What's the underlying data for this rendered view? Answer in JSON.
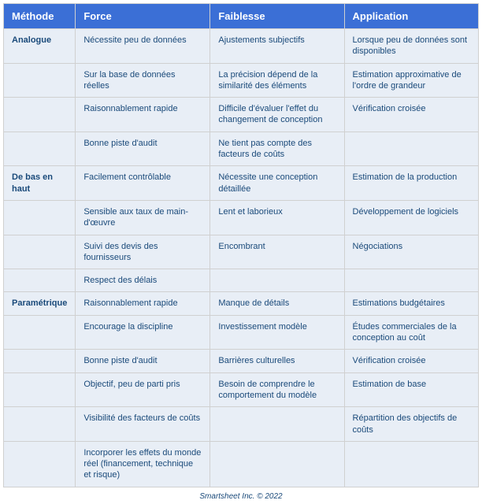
{
  "columns": [
    "Méthode",
    "Force",
    "Faiblesse",
    "Application"
  ],
  "rows": [
    [
      "Analogue",
      "Nécessite peu de données",
      "Ajustements subjectifs",
      "Lorsque peu de données sont disponibles"
    ],
    [
      "",
      "Sur la base de données réelles",
      "La précision dépend de la similarité des éléments",
      "Estimation approximative de l'ordre de grandeur"
    ],
    [
      "",
      "Raisonnablement rapide",
      "Difficile d'évaluer l'effet du changement de conception",
      "Vérification croisée"
    ],
    [
      "",
      "Bonne piste d'audit",
      "Ne tient pas compte des facteurs de coûts",
      ""
    ],
    [
      "De bas en haut",
      "Facilement contrôlable",
      "Nécessite une conception détaillée",
      "Estimation de la production"
    ],
    [
      "",
      "Sensible aux taux de main-d'œuvre",
      "Lent et laborieux",
      "Développement de logiciels"
    ],
    [
      "",
      "Suivi des devis des fournisseurs",
      "Encombrant",
      "Négociations"
    ],
    [
      "",
      "Respect des délais",
      "",
      ""
    ],
    [
      "Paramétrique",
      "Raisonnablement rapide",
      "Manque de détails",
      "Estimations budgétaires"
    ],
    [
      "",
      "Encourage la discipline",
      "Investissement modèle",
      "Études commerciales de la conception au coût"
    ],
    [
      "",
      "Bonne piste d'audit",
      "Barrières culturelles",
      "Vérification croisée"
    ],
    [
      "",
      "Objectif, peu de parti pris",
      "Besoin de comprendre le comportement du modèle",
      "Estimation de base"
    ],
    [
      "",
      "Visibilité des facteurs de coûts",
      "",
      "Répartition des objectifs de coûts"
    ],
    [
      "",
      "Incorporer les effets du monde réel (financement, technique et risque)",
      "",
      ""
    ]
  ],
  "footer": "Smartsheet Inc. © 2022",
  "colors": {
    "header_bg": "#3b6fd6",
    "header_text": "#ffffff",
    "cell_bg": "#e8eef6",
    "cell_text": "#1a4a7a",
    "border": "#d0d0d0"
  }
}
